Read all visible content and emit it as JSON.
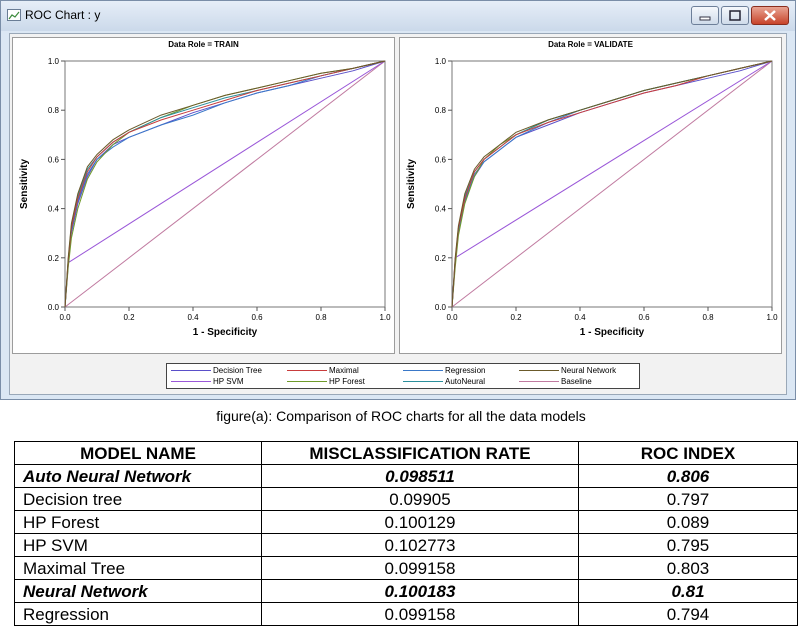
{
  "window": {
    "title": "ROC Chart : y",
    "buttons": {
      "minimize": "minimize-icon",
      "maximize": "maximize-icon",
      "close": "close-icon"
    }
  },
  "colors": {
    "decision_tree": "#5a4fc9",
    "maximal": "#c83c3c",
    "regression": "#3a78c8",
    "neural_network": "#6b5a2a",
    "hp_svm": "#9a57d8",
    "hp_forest": "#6e9a2a",
    "autoneural": "#2b8f9c",
    "baseline": "#c07aa0"
  },
  "chart_data": [
    {
      "type": "line",
      "title": "Data Role = TRAIN",
      "xlabel": "1 - Specificity",
      "ylabel": "Sensitivity",
      "xlim": [
        0,
        1
      ],
      "ylim": [
        0,
        1
      ],
      "xticks": [
        "0.0",
        "0.2",
        "0.4",
        "0.6",
        "0.8",
        "1.0"
      ],
      "yticks": [
        "0.0",
        "0.2",
        "0.4",
        "0.6",
        "0.8",
        "1.0"
      ],
      "series": [
        {
          "name": "Decision Tree",
          "key": "decision_tree",
          "x": [
            0,
            0.01,
            0.02,
            0.04,
            0.07,
            0.1,
            0.15,
            0.2,
            0.3,
            0.4,
            0.5,
            0.6,
            0.7,
            0.8,
            0.9,
            1.0
          ],
          "y": [
            0,
            0.17,
            0.3,
            0.42,
            0.53,
            0.6,
            0.66,
            0.69,
            0.74,
            0.79,
            0.83,
            0.87,
            0.9,
            0.93,
            0.96,
            1.0
          ]
        },
        {
          "name": "Maximal",
          "key": "maximal",
          "x": [
            0,
            0.01,
            0.02,
            0.04,
            0.07,
            0.1,
            0.15,
            0.2,
            0.3,
            0.4,
            0.5,
            0.6,
            0.7,
            0.8,
            0.9,
            1.0
          ],
          "y": [
            0,
            0.19,
            0.32,
            0.44,
            0.55,
            0.61,
            0.67,
            0.71,
            0.76,
            0.8,
            0.84,
            0.88,
            0.91,
            0.94,
            0.97,
            1.0
          ]
        },
        {
          "name": "Regression",
          "key": "regression",
          "x": [
            0,
            0.01,
            0.02,
            0.04,
            0.07,
            0.1,
            0.15,
            0.2,
            0.3,
            0.4,
            0.5,
            0.6,
            0.7,
            0.8,
            0.9,
            1.0
          ],
          "y": [
            0,
            0.18,
            0.31,
            0.43,
            0.54,
            0.6,
            0.65,
            0.69,
            0.74,
            0.78,
            0.83,
            0.87,
            0.9,
            0.94,
            0.97,
            1.0
          ]
        },
        {
          "name": "Neural Network",
          "key": "neural_network",
          "x": [
            0,
            0.01,
            0.02,
            0.04,
            0.07,
            0.1,
            0.15,
            0.2,
            0.3,
            0.4,
            0.5,
            0.6,
            0.7,
            0.8,
            0.9,
            1.0
          ],
          "y": [
            0,
            0.2,
            0.34,
            0.46,
            0.57,
            0.62,
            0.68,
            0.72,
            0.78,
            0.82,
            0.86,
            0.89,
            0.92,
            0.95,
            0.97,
            1.0
          ]
        },
        {
          "name": "HP SVM",
          "key": "hp_svm",
          "x": [
            0,
            0.01,
            1.0
          ],
          "y": [
            0,
            0.18,
            1.0
          ]
        },
        {
          "name": "HP Forest",
          "key": "hp_forest",
          "x": [
            0,
            0.01,
            0.02,
            0.04,
            0.07,
            0.1,
            0.15,
            0.2,
            0.3,
            0.4,
            0.5,
            0.6,
            0.7,
            0.8,
            0.9,
            1.0
          ],
          "y": [
            0,
            0.16,
            0.28,
            0.4,
            0.52,
            0.59,
            0.66,
            0.71,
            0.77,
            0.82,
            0.86,
            0.89,
            0.92,
            0.95,
            0.97,
            1.0
          ]
        },
        {
          "name": "AutoNeural",
          "key": "autoneural",
          "x": [
            0,
            0.01,
            0.02,
            0.04,
            0.07,
            0.1,
            0.15,
            0.2,
            0.3,
            0.4,
            0.5,
            0.6,
            0.7,
            0.8,
            0.9,
            1.0
          ],
          "y": [
            0,
            0.19,
            0.33,
            0.45,
            0.56,
            0.61,
            0.67,
            0.71,
            0.77,
            0.81,
            0.85,
            0.88,
            0.91,
            0.94,
            0.97,
            1.0
          ]
        },
        {
          "name": "Baseline",
          "key": "baseline",
          "x": [
            0,
            1.0
          ],
          "y": [
            0,
            1.0
          ]
        }
      ]
    },
    {
      "type": "line",
      "title": "Data Role = VALIDATE",
      "xlabel": "1 - Specificity",
      "ylabel": "Sensitivity",
      "xlim": [
        0,
        1
      ],
      "ylim": [
        0,
        1
      ],
      "xticks": [
        "0.0",
        "0.2",
        "0.4",
        "0.6",
        "0.8",
        "1.0"
      ],
      "yticks": [
        "0.0",
        "0.2",
        "0.4",
        "0.6",
        "0.8",
        "1.0"
      ],
      "series": [
        {
          "name": "Decision Tree",
          "key": "decision_tree",
          "x": [
            0,
            0.01,
            0.02,
            0.04,
            0.07,
            0.1,
            0.15,
            0.2,
            0.3,
            0.4,
            0.5,
            0.6,
            0.7,
            0.8,
            0.9,
            1.0
          ],
          "y": [
            0,
            0.18,
            0.3,
            0.43,
            0.53,
            0.59,
            0.64,
            0.69,
            0.74,
            0.79,
            0.83,
            0.87,
            0.9,
            0.93,
            0.96,
            1.0
          ]
        },
        {
          "name": "Maximal",
          "key": "maximal",
          "x": [
            0,
            0.01,
            0.02,
            0.04,
            0.07,
            0.1,
            0.15,
            0.2,
            0.3,
            0.4,
            0.5,
            0.6,
            0.7,
            0.8,
            0.9,
            1.0
          ],
          "y": [
            0,
            0.19,
            0.32,
            0.44,
            0.55,
            0.6,
            0.65,
            0.7,
            0.75,
            0.79,
            0.83,
            0.87,
            0.9,
            0.94,
            0.97,
            1.0
          ]
        },
        {
          "name": "Regression",
          "key": "regression",
          "x": [
            0,
            0.01,
            0.02,
            0.04,
            0.07,
            0.1,
            0.15,
            0.2,
            0.3,
            0.4,
            0.5,
            0.6,
            0.7,
            0.8,
            0.9,
            1.0
          ],
          "y": [
            0,
            0.18,
            0.31,
            0.43,
            0.54,
            0.59,
            0.64,
            0.69,
            0.75,
            0.8,
            0.84,
            0.88,
            0.91,
            0.94,
            0.97,
            1.0
          ]
        },
        {
          "name": "Neural Network",
          "key": "neural_network",
          "x": [
            0,
            0.01,
            0.02,
            0.04,
            0.07,
            0.1,
            0.15,
            0.2,
            0.3,
            0.4,
            0.5,
            0.6,
            0.7,
            0.8,
            0.9,
            1.0
          ],
          "y": [
            0,
            0.2,
            0.33,
            0.46,
            0.56,
            0.61,
            0.66,
            0.71,
            0.76,
            0.8,
            0.84,
            0.88,
            0.91,
            0.94,
            0.97,
            1.0
          ]
        },
        {
          "name": "HP SVM",
          "key": "hp_svm",
          "x": [
            0,
            0.01,
            1.0
          ],
          "y": [
            0,
            0.2,
            1.0
          ]
        },
        {
          "name": "HP Forest",
          "key": "hp_forest",
          "x": [
            0,
            0.01,
            0.02,
            0.04,
            0.07,
            0.1,
            0.15,
            0.2,
            0.3,
            0.4,
            0.5,
            0.6,
            0.7,
            0.8,
            0.9,
            1.0
          ],
          "y": [
            0,
            0.16,
            0.29,
            0.42,
            0.53,
            0.6,
            0.66,
            0.7,
            0.76,
            0.8,
            0.84,
            0.88,
            0.91,
            0.94,
            0.97,
            1.0
          ]
        },
        {
          "name": "AutoNeural",
          "key": "autoneural",
          "x": [
            0,
            0.01,
            0.02,
            0.04,
            0.07,
            0.1,
            0.15,
            0.2,
            0.3,
            0.4,
            0.5,
            0.6,
            0.7,
            0.8,
            0.9,
            1.0
          ],
          "y": [
            0,
            0.19,
            0.32,
            0.45,
            0.55,
            0.6,
            0.65,
            0.7,
            0.76,
            0.8,
            0.84,
            0.88,
            0.91,
            0.94,
            0.97,
            1.0
          ]
        },
        {
          "name": "Baseline",
          "key": "baseline",
          "x": [
            0,
            1.0
          ],
          "y": [
            0,
            1.0
          ]
        }
      ]
    }
  ],
  "legend": {
    "items": [
      {
        "label": "Decision Tree",
        "key": "decision_tree"
      },
      {
        "label": "Maximal",
        "key": "maximal"
      },
      {
        "label": "Regression",
        "key": "regression"
      },
      {
        "label": "Neural Network",
        "key": "neural_network"
      },
      {
        "label": "HP SVM",
        "key": "hp_svm"
      },
      {
        "label": "HP Forest",
        "key": "hp_forest"
      },
      {
        "label": "AutoNeural",
        "key": "autoneural"
      },
      {
        "label": "Baseline",
        "key": "baseline"
      }
    ]
  },
  "caption": "figure(a): Comparison of ROC charts for all the data models",
  "table": {
    "headers": [
      "MODEL NAME",
      "MISCLASSIFICATION RATE",
      "ROC INDEX"
    ],
    "rows": [
      {
        "name": "Auto Neural Network",
        "rate": "0.098511",
        "roc": "0.806",
        "highlight": true
      },
      {
        "name": "Decision tree",
        "rate": "0.09905",
        "roc": "0.797",
        "highlight": false
      },
      {
        "name": "HP Forest",
        "rate": "0.100129",
        "roc": "0.089",
        "highlight": false
      },
      {
        "name": "HP SVM",
        "rate": "0.102773",
        "roc": "0.795",
        "highlight": false
      },
      {
        "name": "Maximal Tree",
        "rate": "0.099158",
        "roc": "0.803",
        "highlight": false
      },
      {
        "name": "Neural Network",
        "rate": "0.100183",
        "roc": "0.81",
        "highlight": true
      },
      {
        "name": "Regression",
        "rate": "0.099158",
        "roc": "0.794",
        "highlight": false
      }
    ]
  }
}
